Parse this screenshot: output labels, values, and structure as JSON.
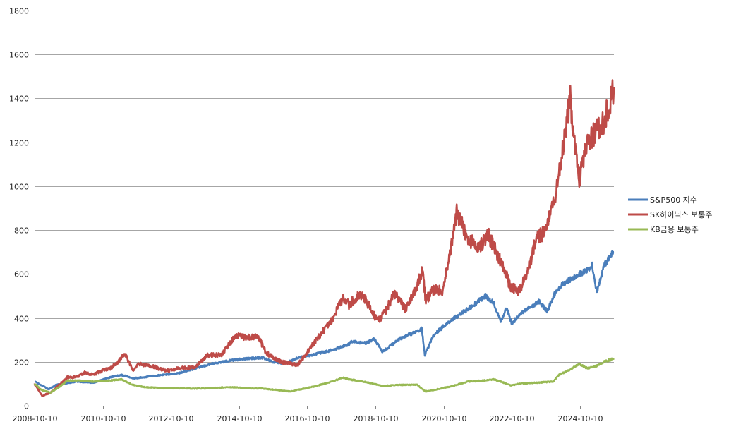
{
  "chart_data": {
    "type": "line",
    "title": "",
    "xlabel": "",
    "ylabel": "",
    "ylim": [
      0,
      1800
    ],
    "y_ticks": [
      0,
      200,
      400,
      600,
      800,
      1000,
      1200,
      1400,
      1600,
      1800
    ],
    "x_ticks": [
      "2008-10-10",
      "2010-10-10",
      "2012-10-10",
      "2014-10-10",
      "2016-10-10",
      "2018-10-10",
      "2020-10-10",
      "2022-10-10",
      "2024-10-10"
    ],
    "xlim": [
      "2008-10-10",
      "2025-10-10"
    ],
    "grid": "horizontal",
    "legend_position": "right",
    "series": [
      {
        "name": "S&P500 지수",
        "color": "#4a7ebb",
        "points": [
          [
            "2008-10-10",
            110
          ],
          [
            "2009-03-09",
            75
          ],
          [
            "2009-06-01",
            95
          ],
          [
            "2009-12-31",
            110
          ],
          [
            "2010-06-30",
            105
          ],
          [
            "2010-12-31",
            130
          ],
          [
            "2011-04-30",
            140
          ],
          [
            "2011-08-31",
            125
          ],
          [
            "2011-12-31",
            130
          ],
          [
            "2012-06-30",
            140
          ],
          [
            "2012-12-31",
            148
          ],
          [
            "2013-06-30",
            170
          ],
          [
            "2013-12-31",
            192
          ],
          [
            "2014-06-30",
            205
          ],
          [
            "2014-12-31",
            215
          ],
          [
            "2015-06-30",
            218
          ],
          [
            "2015-09-30",
            200
          ],
          [
            "2016-02-11",
            192
          ],
          [
            "2016-06-30",
            218
          ],
          [
            "2016-12-31",
            235
          ],
          [
            "2017-06-30",
            253
          ],
          [
            "2017-12-31",
            280
          ],
          [
            "2018-01-26",
            295
          ],
          [
            "2018-06-30",
            285
          ],
          [
            "2018-09-30",
            305
          ],
          [
            "2018-12-24",
            245
          ],
          [
            "2019-06-30",
            305
          ],
          [
            "2019-12-31",
            340
          ],
          [
            "2020-02-19",
            350
          ],
          [
            "2020-03-23",
            232
          ],
          [
            "2020-06-30",
            325
          ],
          [
            "2020-12-31",
            390
          ],
          [
            "2021-06-30",
            440
          ],
          [
            "2021-12-31",
            500
          ],
          [
            "2022-03-31",
            470
          ],
          [
            "2022-06-16",
            385
          ],
          [
            "2022-08-16",
            445
          ],
          [
            "2022-10-12",
            375
          ],
          [
            "2023-01-31",
            425
          ],
          [
            "2023-07-31",
            475
          ],
          [
            "2023-10-27",
            430
          ],
          [
            "2023-12-31",
            500
          ],
          [
            "2024-03-31",
            550
          ],
          [
            "2024-07-16",
            580
          ],
          [
            "2024-12-31",
            620
          ],
          [
            "2025-02-19",
            640
          ],
          [
            "2025-04-08",
            520
          ],
          [
            "2025-06-30",
            640
          ],
          [
            "2025-10-10",
            700
          ]
        ]
      },
      {
        "name": "SK하이닉스 보통주",
        "color": "#be4b48",
        "points": [
          [
            "2008-10-10",
            100
          ],
          [
            "2008-12-31",
            45
          ],
          [
            "2009-03-31",
            60
          ],
          [
            "2009-06-30",
            95
          ],
          [
            "2009-09-30",
            130
          ],
          [
            "2009-12-31",
            130
          ],
          [
            "2010-03-31",
            150
          ],
          [
            "2010-06-30",
            140
          ],
          [
            "2010-09-30",
            160
          ],
          [
            "2010-12-31",
            170
          ],
          [
            "2011-03-31",
            200
          ],
          [
            "2011-05-31",
            240
          ],
          [
            "2011-08-31",
            160
          ],
          [
            "2011-10-31",
            190
          ],
          [
            "2012-03-31",
            180
          ],
          [
            "2012-06-30",
            165
          ],
          [
            "2012-09-30",
            160
          ],
          [
            "2012-12-31",
            170
          ],
          [
            "2013-06-30",
            175
          ],
          [
            "2013-10-31",
            230
          ],
          [
            "2014-03-31",
            230
          ],
          [
            "2014-06-30",
            280
          ],
          [
            "2014-08-31",
            320
          ],
          [
            "2014-12-31",
            310
          ],
          [
            "2015-04-30",
            315
          ],
          [
            "2015-07-31",
            240
          ],
          [
            "2015-12-31",
            200
          ],
          [
            "2016-06-30",
            185
          ],
          [
            "2016-12-31",
            290
          ],
          [
            "2017-06-30",
            390
          ],
          [
            "2017-10-31",
            490
          ],
          [
            "2017-12-31",
            460
          ],
          [
            "2018-04-30",
            510
          ],
          [
            "2018-06-30",
            480
          ],
          [
            "2018-10-31",
            390
          ],
          [
            "2018-12-31",
            410
          ],
          [
            "2019-04-30",
            510
          ],
          [
            "2019-08-31",
            440
          ],
          [
            "2019-12-31",
            550
          ],
          [
            "2020-02-28",
            620
          ],
          [
            "2020-03-31",
            480
          ],
          [
            "2020-06-30",
            530
          ],
          [
            "2020-09-30",
            520
          ],
          [
            "2020-12-31",
            730
          ],
          [
            "2021-02-28",
            880
          ],
          [
            "2021-06-30",
            760
          ],
          [
            "2021-10-31",
            720
          ],
          [
            "2022-01-31",
            780
          ],
          [
            "2022-04-30",
            700
          ],
          [
            "2022-07-31",
            610
          ],
          [
            "2022-09-30",
            540
          ],
          [
            "2022-12-31",
            520
          ],
          [
            "2023-03-31",
            610
          ],
          [
            "2023-06-30",
            760
          ],
          [
            "2023-09-30",
            790
          ],
          [
            "2023-12-31",
            910
          ],
          [
            "2024-03-31",
            1150
          ],
          [
            "2024-06-30",
            1400
          ],
          [
            "2024-07-31",
            1250
          ],
          [
            "2024-09-30",
            1020
          ],
          [
            "2024-12-31",
            1200
          ],
          [
            "2025-03-31",
            1250
          ],
          [
            "2025-06-30",
            1300
          ],
          [
            "2025-10-10",
            1450
          ]
        ]
      },
      {
        "name": "KB금융 보통주",
        "color": "#98b954",
        "points": [
          [
            "2008-10-10",
            100
          ],
          [
            "2008-12-31",
            70
          ],
          [
            "2009-03-31",
            60
          ],
          [
            "2009-06-30",
            85
          ],
          [
            "2009-09-30",
            115
          ],
          [
            "2009-12-31",
            115
          ],
          [
            "2010-06-30",
            110
          ],
          [
            "2010-12-31",
            115
          ],
          [
            "2011-04-30",
            120
          ],
          [
            "2011-08-31",
            95
          ],
          [
            "2011-12-31",
            85
          ],
          [
            "2012-06-30",
            80
          ],
          [
            "2012-12-31",
            80
          ],
          [
            "2013-06-30",
            78
          ],
          [
            "2013-12-31",
            80
          ],
          [
            "2014-06-30",
            85
          ],
          [
            "2014-12-31",
            80
          ],
          [
            "2015-06-30",
            78
          ],
          [
            "2015-12-31",
            70
          ],
          [
            "2016-03-31",
            65
          ],
          [
            "2016-06-30",
            72
          ],
          [
            "2016-12-31",
            88
          ],
          [
            "2017-06-30",
            110
          ],
          [
            "2017-10-31",
            128
          ],
          [
            "2017-12-31",
            120
          ],
          [
            "2018-06-30",
            108
          ],
          [
            "2018-12-31",
            90
          ],
          [
            "2019-06-30",
            95
          ],
          [
            "2019-12-31",
            95
          ],
          [
            "2020-03-31",
            65
          ],
          [
            "2020-06-30",
            72
          ],
          [
            "2020-12-31",
            88
          ],
          [
            "2021-06-30",
            110
          ],
          [
            "2021-12-31",
            115
          ],
          [
            "2022-03-31",
            120
          ],
          [
            "2022-06-30",
            108
          ],
          [
            "2022-09-30",
            92
          ],
          [
            "2022-12-31",
            100
          ],
          [
            "2023-06-30",
            105
          ],
          [
            "2023-12-31",
            110
          ],
          [
            "2024-02-29",
            140
          ],
          [
            "2024-06-30",
            165
          ],
          [
            "2024-09-30",
            190
          ],
          [
            "2024-12-31",
            170
          ],
          [
            "2025-03-31",
            180
          ],
          [
            "2025-06-30",
            200
          ],
          [
            "2025-10-10",
            215
          ]
        ]
      }
    ]
  }
}
